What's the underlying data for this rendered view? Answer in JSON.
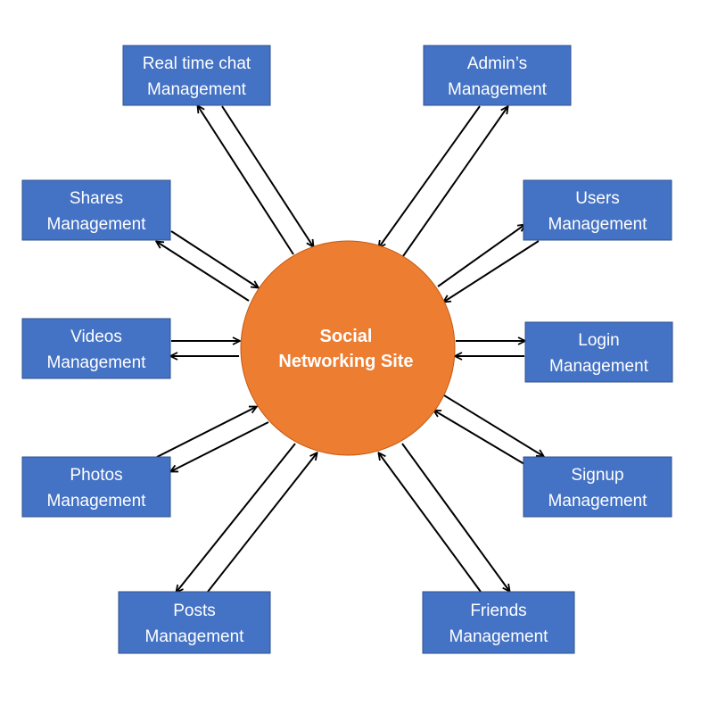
{
  "center": {
    "line1": "Social",
    "line2": "Networking Site",
    "fill": "#ED7D31"
  },
  "box_style": {
    "fill": "#4472C4",
    "stroke": "#2F528F",
    "text": "#FFFFFF"
  },
  "arrow_color": "#000000",
  "modules": [
    {
      "id": "realtime-chat",
      "line1": "Real time chat",
      "line2": "Management"
    },
    {
      "id": "admins",
      "line1": "Admin’s",
      "line2": "Management"
    },
    {
      "id": "shares",
      "line1": "Shares",
      "line2": "Management"
    },
    {
      "id": "users",
      "line1": "Users",
      "line2": "Management"
    },
    {
      "id": "videos",
      "line1": "Videos",
      "line2": "Management"
    },
    {
      "id": "login",
      "line1": "Login",
      "line2": "Management"
    },
    {
      "id": "photos",
      "line1": "Photos",
      "line2": "Management"
    },
    {
      "id": "signup",
      "line1": "Signup",
      "line2": "Management"
    },
    {
      "id": "posts",
      "line1": "Posts",
      "line2": "Management"
    },
    {
      "id": "friends",
      "line1": "Friends",
      "line2": "Management"
    }
  ],
  "connections": [
    {
      "module": "realtime-chat",
      "direction": "bidirectional"
    },
    {
      "module": "admins",
      "direction": "bidirectional"
    },
    {
      "module": "shares",
      "direction": "bidirectional"
    },
    {
      "module": "users",
      "direction": "bidirectional"
    },
    {
      "module": "videos",
      "direction": "bidirectional"
    },
    {
      "module": "login",
      "direction": "bidirectional"
    },
    {
      "module": "photos",
      "direction": "bidirectional"
    },
    {
      "module": "signup",
      "direction": "bidirectional"
    },
    {
      "module": "posts",
      "direction": "bidirectional"
    },
    {
      "module": "friends",
      "direction": "bidirectional"
    }
  ]
}
